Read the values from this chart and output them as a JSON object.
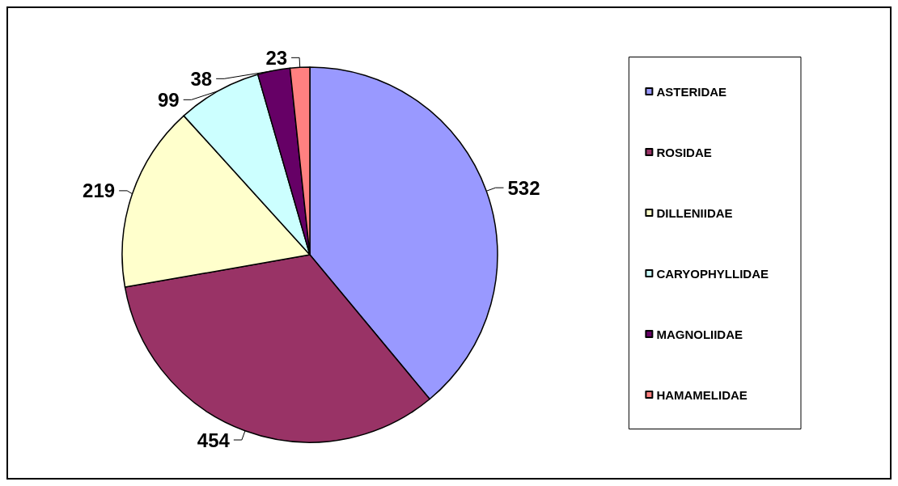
{
  "chart_data": {
    "type": "pie",
    "categories": [
      "ASTERIDAE",
      "ROSIDAE",
      "DILLENIIDAE",
      "CARYOPHYLLIDAE",
      "MAGNOLIIDAE",
      "HAMAMELIDAE"
    ],
    "values": [
      532,
      454,
      219,
      99,
      38,
      23
    ],
    "colors": [
      "#9999ff",
      "#993366",
      "#ffffcc",
      "#ccffff",
      "#660066",
      "#ff8080"
    ],
    "data_labels": true,
    "legend": "right"
  }
}
